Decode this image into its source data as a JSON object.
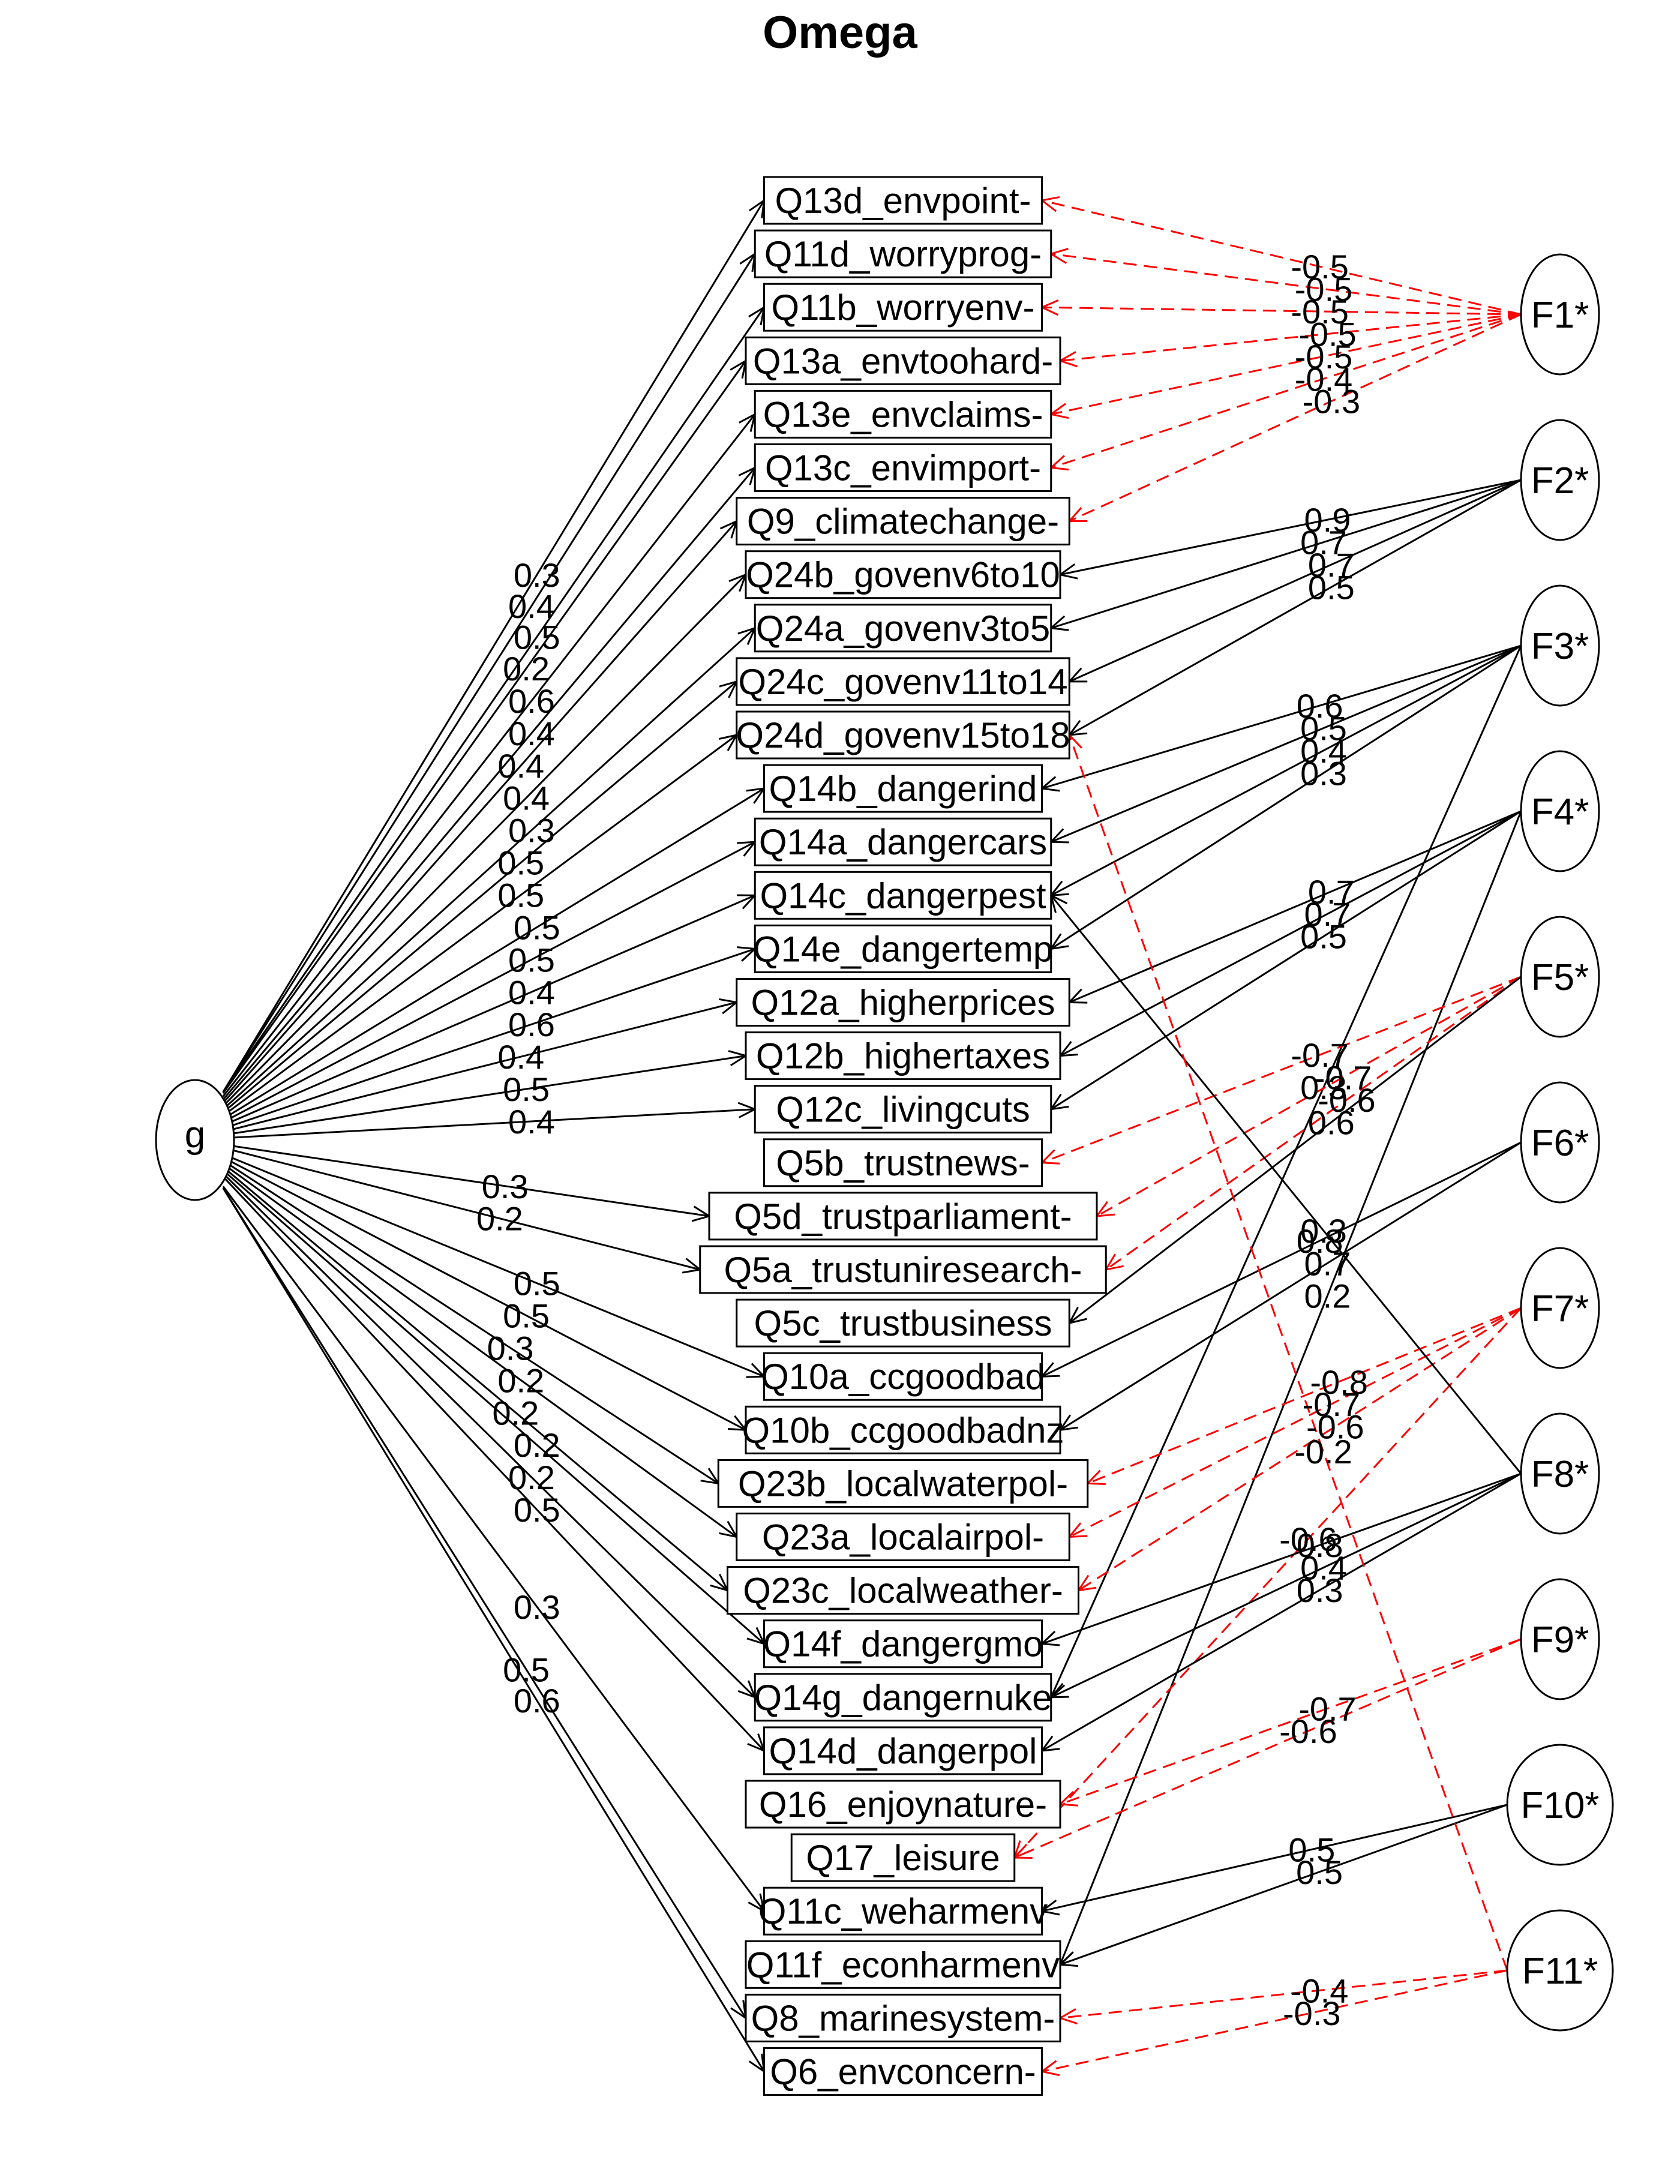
{
  "title": "Omega",
  "colors": {
    "positive": "#000000",
    "negative": "#ff0000"
  },
  "general_factor": {
    "label": "g"
  },
  "factors": [
    "F1*",
    "F2*",
    "F3*",
    "F4*",
    "F5*",
    "F6*",
    "F7*",
    "F8*",
    "F9*",
    "F10*",
    "F11*"
  ],
  "items": [
    "Q13d_envpoint-",
    "Q11d_worryprog-",
    "Q11b_worryenv-",
    "Q13a_envtoohard-",
    "Q13e_envclaims-",
    "Q13c_envimport-",
    "Q9_climatechange-",
    "Q24b_govenv6to10",
    "Q24a_govenv3to5",
    "Q24c_govenv11to14",
    "Q24d_govenv15to18",
    "Q14b_dangerind",
    "Q14a_dangercars",
    "Q14c_dangerpest",
    "Q14e_dangertemp",
    "Q12a_higherprices",
    "Q12b_highertaxes",
    "Q12c_livingcuts",
    "Q5b_trustnews-",
    "Q5d_trustparliament-",
    "Q5a_trustuniresearch-",
    "Q5c_trustbusiness",
    "Q10a_ccgoodbad",
    "Q10b_ccgoodbadnz",
    "Q23b_localwaterpol-",
    "Q23a_localairpol-",
    "Q23c_localweather-",
    "Q14f_dangergmo",
    "Q14g_dangernuke",
    "Q14d_dangerpol",
    "Q16_enjoynature-",
    "Q17_leisure",
    "Q11c_weharmenv",
    "Q11f_econharmenv",
    "Q8_marinesystem-",
    "Q6_envconcern-"
  ],
  "g_loadings": [
    {
      "item": 0,
      "value": "0.3"
    },
    {
      "item": 1,
      "value": "0.4"
    },
    {
      "item": 2,
      "value": "0.5"
    },
    {
      "item": 3,
      "value": "0.2"
    },
    {
      "item": 4,
      "value": "0.6"
    },
    {
      "item": 5,
      "value": "0.4"
    },
    {
      "item": 6,
      "value": "0.4"
    },
    {
      "item": 7,
      "value": "0.4"
    },
    {
      "item": 8,
      "value": "0.3"
    },
    {
      "item": 9,
      "value": "0.5"
    },
    {
      "item": 10,
      "value": "0.5"
    },
    {
      "item": 11,
      "value": "0.5"
    },
    {
      "item": 12,
      "value": "0.5"
    },
    {
      "item": 13,
      "value": "0.4"
    },
    {
      "item": 14,
      "value": "0.6"
    },
    {
      "item": 15,
      "value": "0.4"
    },
    {
      "item": 16,
      "value": "0.5"
    },
    {
      "item": 17,
      "value": "0.4"
    },
    {
      "item": 19,
      "value": "0.3"
    },
    {
      "item": 20,
      "value": "0.2"
    },
    {
      "item": 22,
      "value": "0.5"
    },
    {
      "item": 23,
      "value": "0.5"
    },
    {
      "item": 24,
      "value": "0.3"
    },
    {
      "item": 25,
      "value": "0.2"
    },
    {
      "item": 26,
      "value": "0.2"
    },
    {
      "item": 27,
      "value": "0.2"
    },
    {
      "item": 28,
      "value": "0.2"
    },
    {
      "item": 29,
      "value": "0.5"
    },
    {
      "item": 32,
      "value": "0.3"
    },
    {
      "item": 34,
      "value": "0.5"
    },
    {
      "item": 35,
      "value": "0.6"
    }
  ],
  "factor_loadings": [
    {
      "factor": 0,
      "item": 0,
      "value": "-0.5"
    },
    {
      "factor": 0,
      "item": 1,
      "value": "-0.5"
    },
    {
      "factor": 0,
      "item": 2,
      "value": "-0.5"
    },
    {
      "factor": 0,
      "item": 3,
      "value": "-0.5"
    },
    {
      "factor": 0,
      "item": 4,
      "value": "-0.5"
    },
    {
      "factor": 0,
      "item": 5,
      "value": "-0.4"
    },
    {
      "factor": 0,
      "item": 6,
      "value": "-0.3"
    },
    {
      "factor": 1,
      "item": 7,
      "value": "0.9"
    },
    {
      "factor": 1,
      "item": 8,
      "value": "0.7"
    },
    {
      "factor": 1,
      "item": 9,
      "value": "0.7"
    },
    {
      "factor": 1,
      "item": 10,
      "value": "0.5"
    },
    {
      "factor": 2,
      "item": 11,
      "value": "0.6"
    },
    {
      "factor": 2,
      "item": 12,
      "value": "0.5"
    },
    {
      "factor": 2,
      "item": 13,
      "value": "0.4"
    },
    {
      "factor": 2,
      "item": 14,
      "value": "0.3"
    },
    {
      "factor": 2,
      "item": 28,
      "value": "0.3"
    },
    {
      "factor": 3,
      "item": 15,
      "value": "0.7"
    },
    {
      "factor": 3,
      "item": 16,
      "value": "0.7"
    },
    {
      "factor": 3,
      "item": 17,
      "value": "0.5"
    },
    {
      "factor": 3,
      "item": 33,
      "value": "0.2"
    },
    {
      "factor": 4,
      "item": 18,
      "value": "-0.7"
    },
    {
      "factor": 4,
      "item": 19,
      "value": "-0.7"
    },
    {
      "factor": 4,
      "item": 20,
      "value": "-0.6"
    },
    {
      "factor": 4,
      "item": 21,
      "value": "0.6"
    },
    {
      "factor": 5,
      "item": 22,
      "value": "0.8"
    },
    {
      "factor": 5,
      "item": 23,
      "value": "0.7"
    },
    {
      "factor": 6,
      "item": 24,
      "value": "-0.8"
    },
    {
      "factor": 6,
      "item": 25,
      "value": "-0.7"
    },
    {
      "factor": 6,
      "item": 26,
      "value": "-0.6"
    },
    {
      "factor": 6,
      "item": 31,
      "value": "-0.6"
    },
    {
      "factor": 7,
      "item": 13,
      "value": "0.3"
    },
    {
      "factor": 7,
      "item": 27,
      "value": "0.8"
    },
    {
      "factor": 7,
      "item": 28,
      "value": "0.4"
    },
    {
      "factor": 7,
      "item": 29,
      "value": "0.3"
    },
    {
      "factor": 8,
      "item": 30,
      "value": "-0.7"
    },
    {
      "factor": 8,
      "item": 31,
      "value": "-0.6"
    },
    {
      "factor": 9,
      "item": 32,
      "value": "0.5"
    },
    {
      "factor": 9,
      "item": 33,
      "value": "0.5"
    },
    {
      "factor": 10,
      "item": 10,
      "value": "-0.2"
    },
    {
      "factor": 10,
      "item": 34,
      "value": "-0.4"
    },
    {
      "factor": 10,
      "item": 35,
      "value": "-0.3"
    }
  ]
}
